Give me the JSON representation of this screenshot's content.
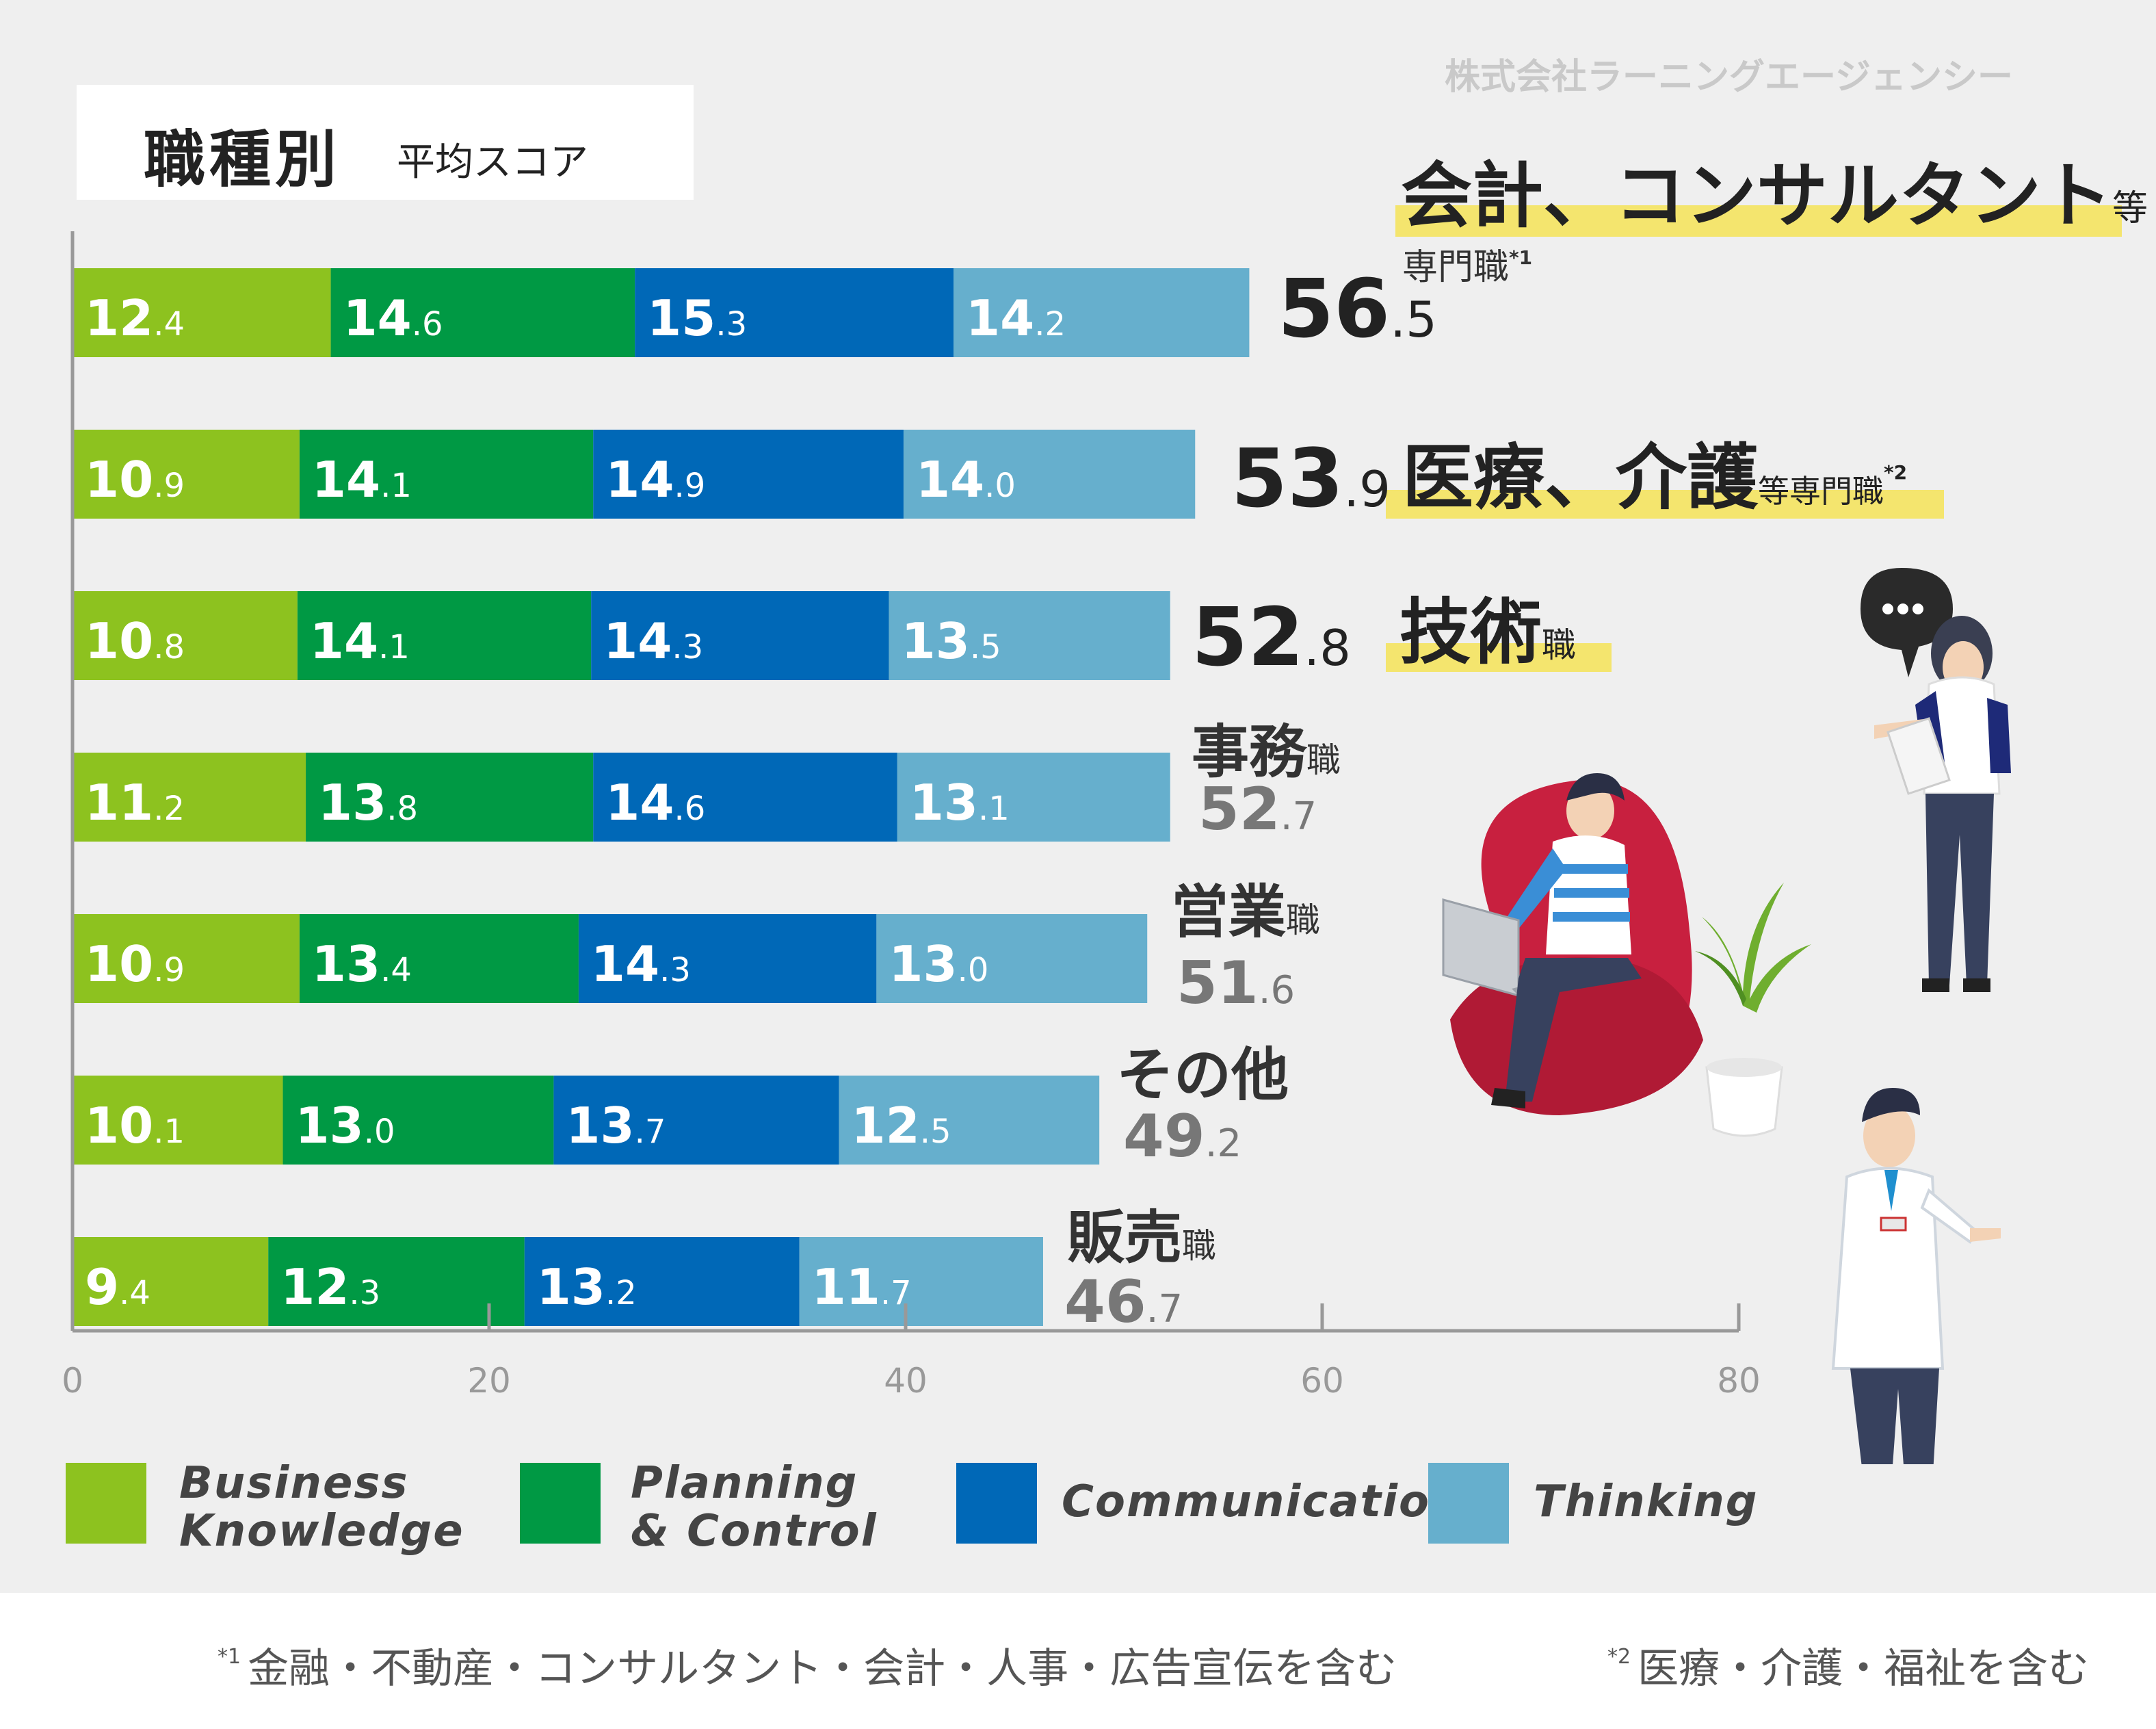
{
  "watermark": "株式会社ラーニングエージェンシー",
  "title": {
    "main": "職種別",
    "sub": "平均スコア"
  },
  "colors": {
    "business_knowledge": "#8dc21f",
    "planning_control": "#009944",
    "communication": "#0068b7",
    "thinking": "#66afcd",
    "highlight": "#f4e56e"
  },
  "chart_data": {
    "type": "bar",
    "orientation": "horizontal",
    "stacked": true,
    "xlim": [
      0,
      80
    ],
    "x_ticks": [
      "0",
      "20",
      "40",
      "60",
      "80"
    ],
    "categories": [
      "会計、コンサルタント等専門職*1",
      "医療、介護等専門職*2",
      "技術職",
      "事務職",
      "営業職",
      "その他",
      "販売職"
    ],
    "series": [
      {
        "name": "Business Knowledge",
        "values": [
          12.4,
          10.9,
          10.8,
          11.2,
          10.9,
          10.1,
          9.4
        ]
      },
      {
        "name": "Planning & Control",
        "values": [
          14.6,
          14.1,
          14.1,
          13.8,
          13.4,
          13.0,
          12.3
        ]
      },
      {
        "name": "Communication",
        "values": [
          15.3,
          14.9,
          14.3,
          14.6,
          14.3,
          13.7,
          13.2
        ]
      },
      {
        "name": "Thinking",
        "values": [
          14.2,
          14.0,
          13.5,
          13.1,
          13.0,
          12.5,
          11.7
        ]
      }
    ],
    "totals": [
      56.5,
      53.9,
      52.8,
      52.7,
      51.6,
      49.2,
      46.7
    ],
    "segment_labels": [
      [
        [
          "12",
          ".4"
        ],
        [
          "14",
          ".6"
        ],
        [
          "15",
          ".3"
        ],
        [
          "14",
          ".2"
        ]
      ],
      [
        [
          "10",
          ".9"
        ],
        [
          "14",
          ".1"
        ],
        [
          "14",
          ".9"
        ],
        [
          "14",
          ".0"
        ]
      ],
      [
        [
          "10",
          ".8"
        ],
        [
          "14",
          ".1"
        ],
        [
          "14",
          ".3"
        ],
        [
          "13",
          ".5"
        ]
      ],
      [
        [
          "11",
          ".2"
        ],
        [
          "13",
          ".8"
        ],
        [
          "14",
          ".6"
        ],
        [
          "13",
          ".1"
        ]
      ],
      [
        [
          "10",
          ".9"
        ],
        [
          "13",
          ".4"
        ],
        [
          "14",
          ".3"
        ],
        [
          "13",
          ".0"
        ]
      ],
      [
        [
          "10",
          ".1"
        ],
        [
          "13",
          ".0"
        ],
        [
          "13",
          ".7"
        ],
        [
          "12",
          ".5"
        ]
      ],
      [
        [
          "9",
          ".4"
        ],
        [
          "12",
          ".3"
        ],
        [
          "13",
          ".2"
        ],
        [
          "11",
          ".7"
        ]
      ]
    ],
    "total_labels": [
      [
        "56",
        ".5"
      ],
      [
        "53",
        ".9"
      ],
      [
        "52",
        ".8"
      ],
      [
        "52",
        ".7"
      ],
      [
        "51",
        ".6"
      ],
      [
        "49",
        ".2"
      ],
      [
        "46",
        ".7"
      ]
    ],
    "row_labels": [
      {
        "main": "会計、コンサルタント",
        "suffix": "等",
        "sub": "専門職",
        "note": "*1"
      },
      {
        "main": "医療、介護",
        "suffix": "等専門職",
        "note": "*2"
      },
      {
        "main": "技術",
        "suffix": "職"
      },
      {
        "main": "事務",
        "suffix": "職"
      },
      {
        "main": "営業",
        "suffix": "職"
      },
      {
        "main": "その他",
        "suffix": ""
      },
      {
        "main": "販売",
        "suffix": "職"
      }
    ]
  },
  "legend": [
    {
      "label": "Business\nKnowledge",
      "color": "#8dc21f"
    },
    {
      "label": "Planning\n& Control",
      "color": "#009944"
    },
    {
      "label": "Communication",
      "color": "#0068b7"
    },
    {
      "label": "Thinking",
      "color": "#66afcd"
    }
  ],
  "footnotes": [
    {
      "mark": "*1",
      "text": "金融・不動産・コンサルタント・会計・人事・広告宣伝を含む"
    },
    {
      "mark": "*2",
      "text": "医療・介護・福祉を含む"
    }
  ],
  "illustrations": [
    "person-with-laptop-illustration",
    "plant-illustration",
    "woman-with-speech-bubble-illustration",
    "doctor-illustration"
  ]
}
